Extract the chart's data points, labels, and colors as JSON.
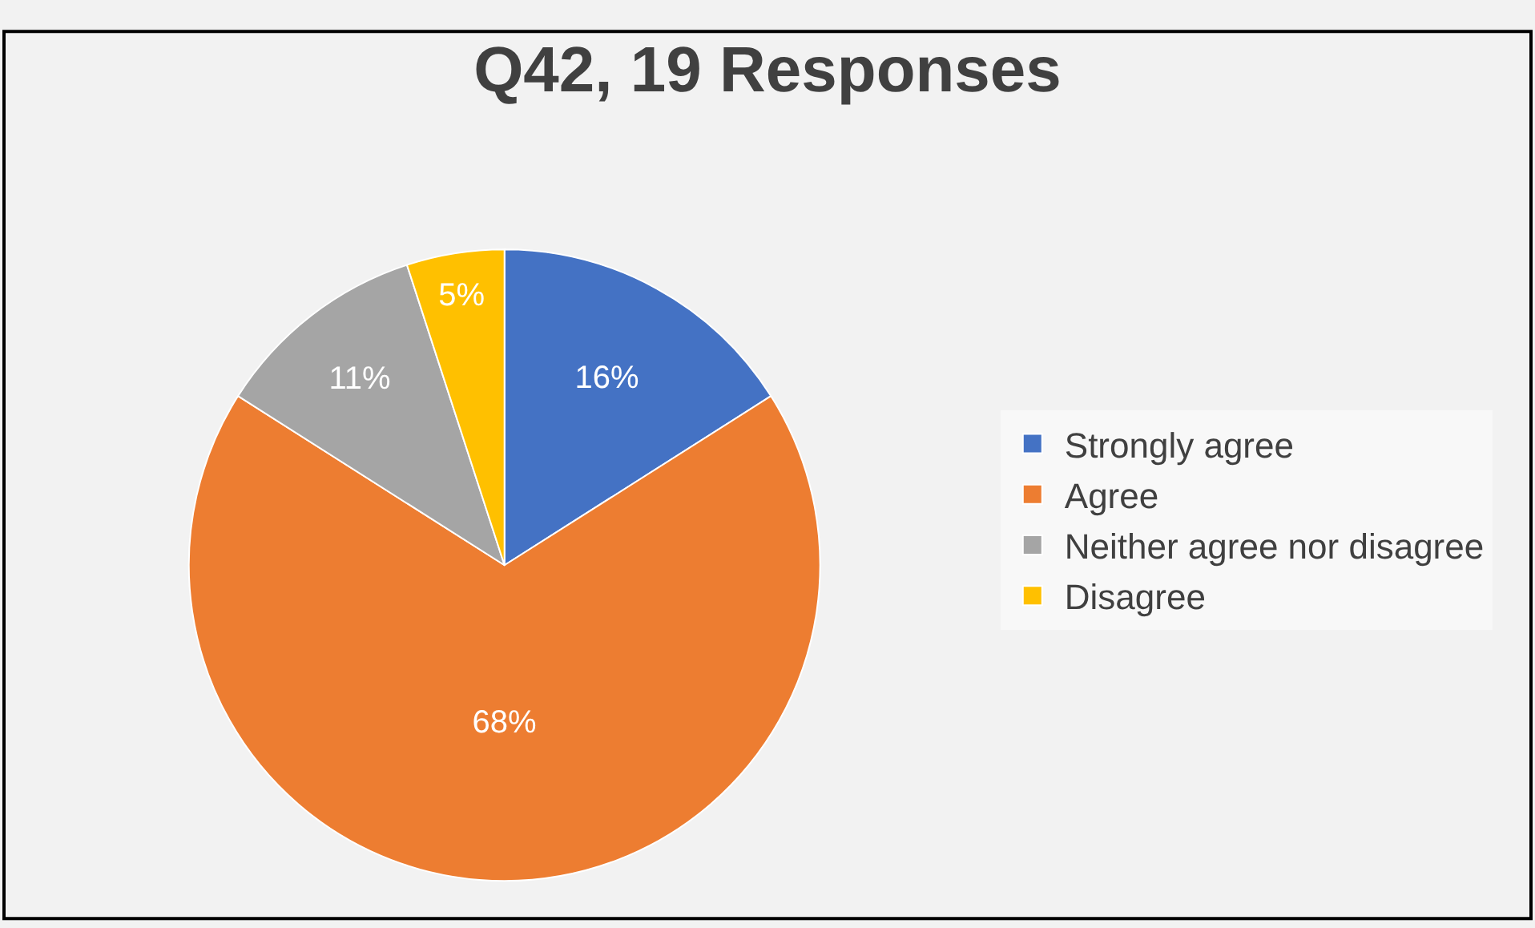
{
  "chart_data": {
    "type": "pie",
    "title": "Q42, 19 Responses",
    "categories": [
      "Strongly agree",
      "Agree",
      "Neither agree nor disagree",
      "Disagree"
    ],
    "values": [
      16,
      68,
      11,
      5
    ],
    "value_labels": [
      "16%",
      "68%",
      "11%",
      "5%"
    ],
    "colors": [
      "#4472c4",
      "#ed7d31",
      "#a5a5a5",
      "#ffc000"
    ],
    "legend": "right"
  }
}
